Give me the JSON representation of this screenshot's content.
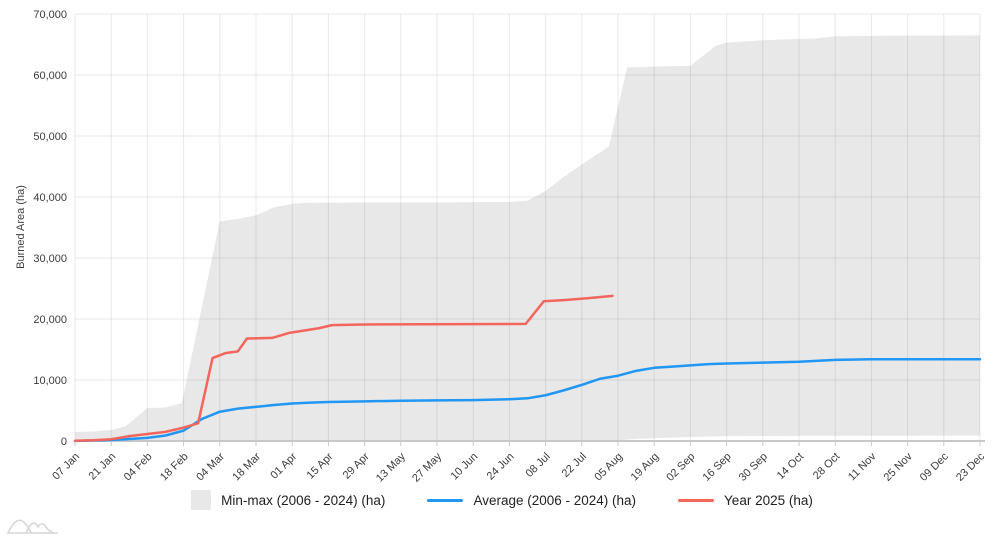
{
  "chart_data": {
    "type": "area",
    "title": "",
    "ylabel": "Burned Area (ha)",
    "xlabel": "",
    "ylim": [
      0,
      70000
    ],
    "grid": true,
    "legend_position": "bottom",
    "y_tick_labels": [
      "0",
      "10,000",
      "20,000",
      "30,000",
      "40,000",
      "50,000",
      "60,000",
      "70,000"
    ],
    "x_tick_labels": [
      "07 Jan",
      "21 Jan",
      "04 Feb",
      "18 Feb",
      "04 Mar",
      "18 Mar",
      "01 Apr",
      "15 Apr",
      "29 Apr",
      "13 May",
      "27 May",
      "10 Jun",
      "24 Jun",
      "08 Jul",
      "22 Jul",
      "05 Aug",
      "19 Aug",
      "02 Sep",
      "16 Sep",
      "30 Sep",
      "14 Oct",
      "28 Oct",
      "11 Nov",
      "25 Nov",
      "09 Dec",
      "23 Dec"
    ],
    "x_units_per_tick": 2,
    "x_unit": "week",
    "series": [
      {
        "name": "Min-max (2006 - 2024) (ha)",
        "type": "band",
        "color": "#e8e8e8",
        "max_points": [
          [
            0,
            1500
          ],
          [
            1,
            1550
          ],
          [
            2,
            1800
          ],
          [
            2.8,
            2400
          ],
          [
            4,
            5400
          ],
          [
            5,
            5500
          ],
          [
            5.9,
            6200
          ],
          [
            8,
            36000
          ],
          [
            9,
            36400
          ],
          [
            10,
            37000
          ],
          [
            11,
            38300
          ],
          [
            12,
            38900
          ],
          [
            13,
            39050
          ],
          [
            16,
            39100
          ],
          [
            20,
            39100
          ],
          [
            24,
            39200
          ],
          [
            25,
            39400
          ],
          [
            26,
            41000
          ],
          [
            27,
            43300
          ],
          [
            28,
            45300
          ],
          [
            29.5,
            48300
          ],
          [
            30.5,
            61200
          ],
          [
            32,
            61400
          ],
          [
            34,
            61500
          ],
          [
            35.4,
            64800
          ],
          [
            36,
            65300
          ],
          [
            38,
            65700
          ],
          [
            41,
            66000
          ],
          [
            42,
            66350
          ],
          [
            46,
            66450
          ],
          [
            50,
            66500
          ]
        ],
        "min_points": [
          [
            0,
            20
          ],
          [
            29,
            30
          ],
          [
            29.7,
            60
          ],
          [
            31,
            350
          ],
          [
            34,
            650
          ],
          [
            36,
            800
          ],
          [
            40,
            850
          ],
          [
            50,
            880
          ]
        ]
      },
      {
        "name": "Average (2006 - 2024) (ha)",
        "type": "line",
        "color": "#2196f3",
        "points": [
          [
            0,
            30
          ],
          [
            1,
            80
          ],
          [
            2,
            160
          ],
          [
            3,
            320
          ],
          [
            4,
            520
          ],
          [
            5,
            900
          ],
          [
            6,
            1700
          ],
          [
            7,
            3600
          ],
          [
            8,
            4800
          ],
          [
            9,
            5300
          ],
          [
            10,
            5600
          ],
          [
            11,
            5900
          ],
          [
            12,
            6150
          ],
          [
            13,
            6300
          ],
          [
            14,
            6400
          ],
          [
            16,
            6500
          ],
          [
            18,
            6600
          ],
          [
            20,
            6650
          ],
          [
            22,
            6700
          ],
          [
            24,
            6850
          ],
          [
            25,
            7000
          ],
          [
            26,
            7500
          ],
          [
            27,
            8300
          ],
          [
            28,
            9200
          ],
          [
            29,
            10200
          ],
          [
            30,
            10700
          ],
          [
            31,
            11500
          ],
          [
            32,
            12000
          ],
          [
            33,
            12200
          ],
          [
            34,
            12400
          ],
          [
            35,
            12600
          ],
          [
            36,
            12700
          ],
          [
            38,
            12850
          ],
          [
            40,
            13000
          ],
          [
            42,
            13300
          ],
          [
            44,
            13400
          ],
          [
            47,
            13400
          ],
          [
            50,
            13400
          ]
        ]
      },
      {
        "name": "Year 2025 (ha)",
        "type": "line",
        "color": "#f4655c",
        "points": [
          [
            0,
            50
          ],
          [
            1,
            120
          ],
          [
            2,
            280
          ],
          [
            3,
            800
          ],
          [
            4,
            1150
          ],
          [
            5,
            1500
          ],
          [
            6,
            2200
          ],
          [
            6.8,
            2900
          ],
          [
            7.6,
            13600
          ],
          [
            8.3,
            14400
          ],
          [
            9.0,
            14700
          ],
          [
            9.5,
            16800
          ],
          [
            10.9,
            16900
          ],
          [
            11.8,
            17700
          ],
          [
            13.5,
            18500
          ],
          [
            14.2,
            19000
          ],
          [
            16,
            19100
          ],
          [
            24.9,
            19200
          ],
          [
            25.9,
            22900
          ],
          [
            27,
            23100
          ],
          [
            28.3,
            23400
          ],
          [
            29.7,
            23800
          ]
        ]
      }
    ]
  }
}
